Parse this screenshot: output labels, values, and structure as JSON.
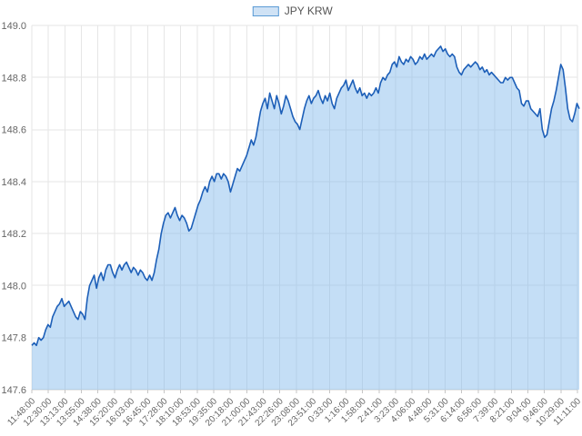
{
  "legend": {
    "label": "JPY KRW"
  },
  "colors": {
    "line": "#1d5fb8",
    "area_fill": "rgba(124,181,236,0.45)",
    "grid": "#e6e6e6",
    "axis_line": "#cfcfcf",
    "tick": "#c6c6c6",
    "label_text": "#666666",
    "legend_swatch_fill": "#cfe2f5",
    "legend_swatch_border": "#5b9bd5",
    "background": "#ffffff"
  },
  "chart_data": {
    "type": "area",
    "title": "",
    "series": [
      {
        "name": "JPY KRW"
      }
    ],
    "legend_position": "top-center",
    "grid": true,
    "ylabel": "",
    "xlabel": "",
    "ylim": [
      147.6,
      149.0
    ],
    "y_tick_labels": [
      "149.0",
      "148.8",
      "148.6",
      "148.4",
      "148.2",
      "148.0",
      "147.8",
      "147.6"
    ],
    "x_tick_labels": [
      "11:48:00",
      "12:30:00",
      "13:13:00",
      "13:55:00",
      "14:38:00",
      "15:20:00",
      "16:03:00",
      "16:45:00",
      "17:28:00",
      "18:10:00",
      "18:53:00",
      "19:35:00",
      "20:18:00",
      "21:00:00",
      "21:43:00",
      "22:26:00",
      "23:08:00",
      "23:51:00",
      "0:33:00",
      "1:16:00",
      "1:58:00",
      "2:41:00",
      "3:23:00",
      "4:06:00",
      "4:48:00",
      "5:31:00",
      "6:14:00",
      "6:56:00",
      "7:39:00",
      "8:21:00",
      "9:04:00",
      "9:46:00",
      "10:29:00",
      "11:11:00"
    ],
    "values": [
      147.77,
      147.78,
      147.77,
      147.8,
      147.79,
      147.8,
      147.83,
      147.85,
      147.84,
      147.88,
      147.9,
      147.92,
      147.93,
      147.95,
      147.92,
      147.93,
      147.94,
      147.92,
      147.9,
      147.88,
      147.87,
      147.9,
      147.89,
      147.87,
      147.95,
      148.0,
      148.02,
      148.04,
      147.99,
      148.03,
      148.05,
      148.02,
      148.06,
      148.08,
      148.08,
      148.05,
      148.03,
      148.06,
      148.08,
      148.06,
      148.08,
      148.09,
      148.07,
      148.05,
      148.07,
      148.06,
      148.04,
      148.06,
      148.05,
      148.03,
      148.02,
      148.04,
      148.02,
      148.05,
      148.1,
      148.14,
      148.2,
      148.24,
      148.27,
      148.28,
      148.26,
      148.28,
      148.3,
      148.27,
      148.25,
      148.27,
      148.26,
      148.24,
      148.21,
      148.22,
      148.25,
      148.28,
      148.31,
      148.33,
      148.36,
      148.38,
      148.36,
      148.4,
      148.42,
      148.4,
      148.43,
      148.43,
      148.41,
      148.43,
      148.42,
      148.4,
      148.36,
      148.39,
      148.42,
      148.45,
      148.44,
      148.46,
      148.48,
      148.5,
      148.53,
      148.56,
      148.54,
      148.57,
      148.62,
      148.67,
      148.7,
      148.72,
      148.68,
      148.74,
      148.71,
      148.68,
      148.73,
      148.7,
      148.66,
      148.69,
      148.73,
      148.71,
      148.68,
      148.65,
      148.63,
      148.62,
      148.6,
      148.64,
      148.68,
      148.71,
      148.73,
      148.7,
      148.72,
      148.73,
      148.75,
      148.72,
      148.7,
      148.73,
      148.71,
      148.74,
      148.7,
      148.68,
      148.72,
      148.74,
      148.76,
      148.77,
      148.79,
      148.75,
      148.77,
      148.79,
      148.76,
      148.74,
      148.76,
      148.73,
      148.74,
      148.72,
      148.74,
      148.73,
      148.74,
      148.76,
      148.74,
      148.78,
      148.8,
      148.79,
      148.81,
      148.82,
      148.85,
      148.86,
      148.84,
      148.88,
      148.86,
      148.85,
      148.87,
      148.86,
      148.88,
      148.87,
      148.85,
      148.86,
      148.88,
      148.87,
      148.89,
      148.87,
      148.88,
      148.89,
      148.88,
      148.9,
      148.91,
      148.92,
      148.9,
      148.91,
      148.89,
      148.88,
      148.89,
      148.88,
      148.84,
      148.82,
      148.81,
      148.83,
      148.84,
      148.85,
      148.84,
      148.85,
      148.86,
      148.85,
      148.83,
      148.84,
      148.82,
      148.83,
      148.81,
      148.82,
      148.81,
      148.8,
      148.79,
      148.78,
      148.78,
      148.8,
      148.79,
      148.8,
      148.8,
      148.78,
      148.76,
      148.75,
      148.7,
      148.69,
      148.71,
      148.71,
      148.68,
      148.67,
      148.66,
      148.65,
      148.68,
      148.6,
      148.57,
      148.58,
      148.63,
      148.68,
      148.71,
      148.75,
      148.8,
      148.85,
      148.83,
      148.76,
      148.68,
      148.64,
      148.63,
      148.66,
      148.7,
      148.68
    ]
  }
}
